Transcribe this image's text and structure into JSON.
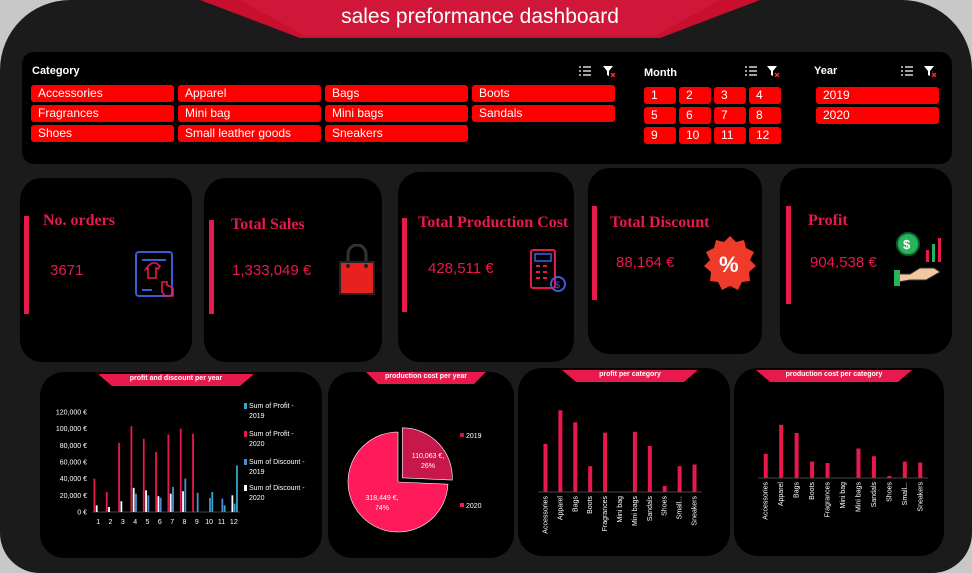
{
  "title": "sales preformance dashboard",
  "colors": {
    "accent": "#e8194c",
    "slicer": "#ff0000",
    "banner": "#c8102e",
    "profit2019": "#33a8c8",
    "profit2020": "#e8194c",
    "discount2019": "#4a8fd0",
    "discount2020": "#ffffff"
  },
  "slicers": {
    "category": {
      "label": "Category",
      "items": [
        "Accessories",
        "Apparel",
        "Bags",
        "Boots",
        "Fragrances",
        "Mini bag",
        "Mini bags",
        "Sandals",
        "Shoes",
        "Small leather goods",
        "Sneakers"
      ]
    },
    "month": {
      "label": "Month",
      "items": [
        "1",
        "2",
        "3",
        "4",
        "5",
        "6",
        "7",
        "8",
        "9",
        "10",
        "11",
        "12"
      ]
    },
    "year": {
      "label": "Year",
      "items": [
        "2019",
        "2020"
      ]
    }
  },
  "kpis": [
    {
      "label": "No. orders",
      "value": "3671",
      "icon": "order-tablet-icon"
    },
    {
      "label": "Total Sales",
      "value": "1,333,049 €",
      "icon": "shopping-bag-icon"
    },
    {
      "label": "Total Production Cost",
      "value": "428,511 €",
      "icon": "calculator-icon"
    },
    {
      "label": "Total Discount",
      "value": "88,164 €",
      "icon": "discount-badge-icon"
    },
    {
      "label": "Profit",
      "value": "904,538 €",
      "icon": "profit-hand-icon"
    }
  ],
  "chart_data": [
    {
      "type": "bar",
      "title": "profit and discount per year",
      "categories": [
        "1",
        "2",
        "3",
        "4",
        "5",
        "6",
        "7",
        "8",
        "9",
        "10",
        "11",
        "12"
      ],
      "yticks": [
        "0 €",
        "20,000 €",
        "40,000 €",
        "60,000 €",
        "80,000 €",
        "100,000 €",
        "120,000 €"
      ],
      "ylim": [
        0,
        120000
      ],
      "series": [
        {
          "name": "Sum of Profit - 2019",
          "values": [
            0,
            0,
            0,
            0,
            0,
            0,
            0,
            0,
            0,
            24000,
            8000,
            56000
          ]
        },
        {
          "name": "Sum of Profit - 2020",
          "values": [
            40000,
            24000,
            83000,
            103000,
            88000,
            72000,
            93000,
            100000,
            94000,
            0,
            0,
            0
          ]
        },
        {
          "name": "Sum of Discount - 2019",
          "values": [
            0,
            0,
            0,
            22000,
            20000,
            17000,
            30000,
            40000,
            23000,
            17000,
            16000,
            10000
          ]
        },
        {
          "name": "Sum of Discount - 2020",
          "values": [
            8000,
            6000,
            13000,
            29000,
            26000,
            19000,
            22000,
            25000,
            0,
            0,
            0,
            20000
          ]
        }
      ],
      "legend": "right"
    },
    {
      "type": "pie",
      "title": "production cost per year",
      "categories": [
        "2019",
        "2020"
      ],
      "values": [
        110063,
        318449
      ],
      "labels": [
        "110,063 €,",
        "26%",
        "318,449 €,",
        "74%"
      ],
      "legend": "right"
    },
    {
      "type": "bar",
      "title": "profit per category",
      "categories": [
        "Accessories",
        "Apparel",
        "Bags",
        "Boots",
        "Fragrances",
        "Mini bag",
        "Mini bags",
        "Sandals",
        "Shoes",
        "Small...",
        "Sneakers"
      ],
      "values": [
        112000,
        190000,
        162000,
        60000,
        138000,
        0,
        140000,
        107000,
        14000,
        60000,
        64000
      ],
      "ylim": [
        0,
        200000
      ]
    },
    {
      "type": "bar",
      "title": "production cost per category",
      "categories": [
        "Accessories",
        "Apparel",
        "Bags",
        "Boots",
        "Fragrances",
        "Mini bag",
        "Mini bags",
        "Sandals",
        "Shoes",
        "Small...",
        "Sneakers"
      ],
      "values": [
        50000,
        110000,
        93000,
        34000,
        31000,
        0,
        61000,
        45000,
        4000,
        34000,
        32000
      ],
      "ylim": [
        0,
        120000
      ]
    }
  ]
}
